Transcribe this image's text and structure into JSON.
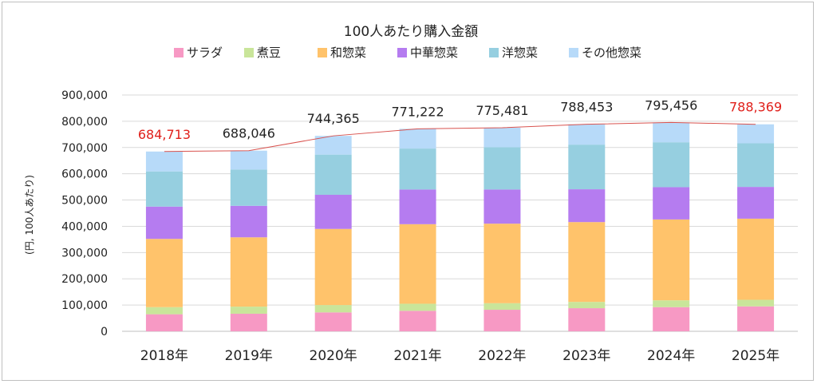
{
  "chart_data": {
    "type": "bar",
    "stacked": true,
    "title": "100人あたり購入金額",
    "ylabel": "(円, 100人あたり)",
    "xlabel": "",
    "ylim": [
      0,
      900000
    ],
    "yticks": [
      0,
      100000,
      200000,
      300000,
      400000,
      500000,
      600000,
      700000,
      800000,
      900000
    ],
    "ytick_labels": [
      "0",
      "100,000",
      "200,000",
      "300,000",
      "400,000",
      "500,000",
      "600,000",
      "700,000",
      "800,000",
      "900,000"
    ],
    "grid": true,
    "legend_position": "top",
    "categories": [
      "2018年",
      "2019年",
      "2020年",
      "2021年",
      "2022年",
      "2023年",
      "2024年",
      "2025年"
    ],
    "series": [
      {
        "name": "サラダ",
        "color": "#f799c4",
        "values": [
          65000,
          67000,
          72000,
          78000,
          82000,
          88000,
          92000,
          95000
        ]
      },
      {
        "name": "煮豆",
        "color": "#c9e59a",
        "values": [
          27000,
          27000,
          28000,
          27000,
          25000,
          24000,
          26000,
          25000
        ]
      },
      {
        "name": "和惣菜",
        "color": "#ffc36b",
        "values": [
          260000,
          264000,
          290000,
          303000,
          303000,
          304000,
          308000,
          309000
        ]
      },
      {
        "name": "中華惣菜",
        "color": "#b57cf0",
        "values": [
          123000,
          120000,
          130000,
          132000,
          130000,
          125000,
          123000,
          121000
        ]
      },
      {
        "name": "洋惣菜",
        "color": "#96cfe0",
        "values": [
          134000,
          138000,
          153000,
          156000,
          161000,
          170000,
          171000,
          166000
        ]
      },
      {
        "name": "その他惣菜",
        "color": "#b7daf9",
        "values": [
          75713,
          72046,
          71365,
          75222,
          74481,
          77453,
          75456,
          72369
        ]
      }
    ],
    "totals": [
      684713,
      688046,
      744365,
      771222,
      775481,
      788453,
      795456,
      788369
    ],
    "total_labels": [
      "684,713",
      "688,046",
      "744,365",
      "771,222",
      "775,481",
      "788,453",
      "795,456",
      "788,369"
    ],
    "total_label_colors": [
      "#e0201b",
      "#222222",
      "#222222",
      "#222222",
      "#222222",
      "#222222",
      "#222222",
      "#e0201b"
    ],
    "total_line_color": "#d9534f"
  }
}
